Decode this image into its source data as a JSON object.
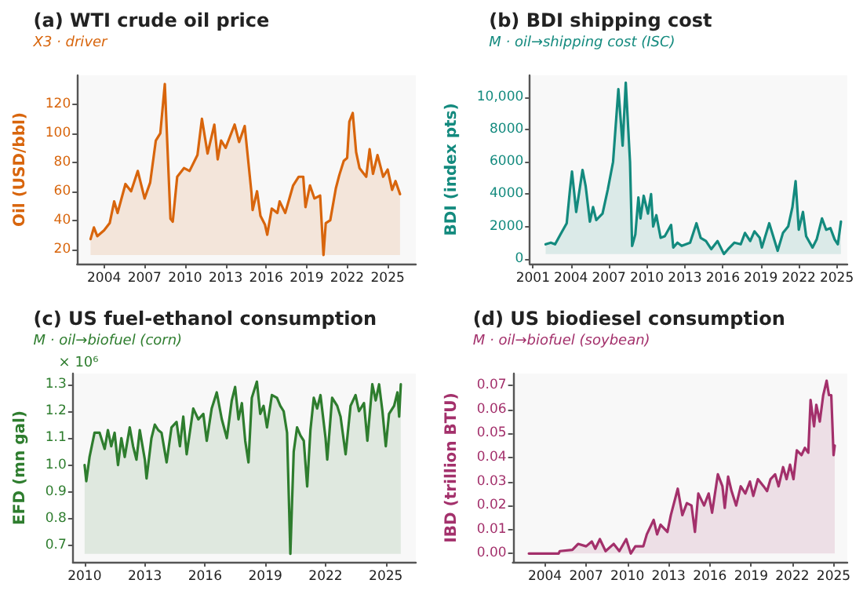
{
  "chart_data": [
    {
      "type": "area",
      "title": "(a) WTI crude oil price",
      "subtitle": "X3 · driver",
      "ylabel": "Oil (USD/bbl)",
      "color": "#d8650c",
      "x": [
        "2003-01",
        "2003-04",
        "2003-07",
        "2004-01",
        "2004-06",
        "2004-10",
        "2005-01",
        "2005-08",
        "2006-01",
        "2006-07",
        "2007-01",
        "2007-06",
        "2007-11",
        "2008-03",
        "2008-07",
        "2008-12",
        "2009-02",
        "2009-06",
        "2009-12",
        "2010-05",
        "2010-12",
        "2011-04",
        "2011-09",
        "2012-03",
        "2012-06",
        "2012-09",
        "2013-01",
        "2013-09",
        "2014-01",
        "2014-06",
        "2014-12",
        "2015-01",
        "2015-05",
        "2015-08",
        "2015-12",
        "2016-02",
        "2016-06",
        "2016-11",
        "2017-01",
        "2017-06",
        "2018-01",
        "2018-06",
        "2018-10",
        "2018-12",
        "2019-04",
        "2019-08",
        "2020-01",
        "2020-04",
        "2020-06",
        "2020-10",
        "2021-03",
        "2021-06",
        "2021-10",
        "2022-01",
        "2022-03",
        "2022-06",
        "2022-09",
        "2022-12",
        "2023-03",
        "2023-06",
        "2023-09",
        "2023-12",
        "2024-04",
        "2024-09",
        "2025-01",
        "2025-05",
        "2025-08",
        "2025-12"
      ],
      "values": [
        27,
        35,
        29,
        33,
        38,
        53,
        45,
        65,
        60,
        74,
        55,
        66,
        95,
        100,
        134,
        41,
        39,
        70,
        76,
        74,
        85,
        110,
        86,
        106,
        82,
        95,
        90,
        106,
        94,
        105,
        59,
        47,
        60,
        43,
        37,
        30,
        48,
        45,
        53,
        45,
        64,
        70,
        70,
        49,
        64,
        55,
        57,
        16,
        38,
        40,
        62,
        71,
        81,
        83,
        108,
        114,
        87,
        76,
        73,
        70,
        89,
        72,
        85,
        70,
        75,
        61,
        67,
        58
      ],
      "xlim": [
        "2002-01",
        "2027-02"
      ],
      "xticks": [
        "2004",
        "2007",
        "2010",
        "2013",
        "2016",
        "2019",
        "2022",
        "2025"
      ],
      "ylim": [
        10,
        140
      ],
      "yticks": [
        20,
        40,
        60,
        80,
        100,
        120
      ]
    },
    {
      "type": "area",
      "title": "(b) BDI shipping cost",
      "subtitle": "M · oil→shipping cost (ISC)",
      "ylabel": "BDI (index pts)",
      "color": "#138a7e",
      "x": [
        "2002-01",
        "2002-06",
        "2002-10",
        "2003-03",
        "2003-09",
        "2003-12",
        "2004-02",
        "2004-06",
        "2004-09",
        "2004-12",
        "2005-03",
        "2005-07",
        "2005-10",
        "2006-01",
        "2006-07",
        "2006-12",
        "2007-05",
        "2007-10",
        "2008-02",
        "2008-05",
        "2008-09",
        "2008-11",
        "2009-02",
        "2009-05",
        "2009-07",
        "2009-10",
        "2010-02",
        "2010-05",
        "2010-07",
        "2010-10",
        "2011-02",
        "2011-06",
        "2011-12",
        "2012-02",
        "2012-06",
        "2012-10",
        "2013-06",
        "2013-12",
        "2014-04",
        "2014-09",
        "2015-02",
        "2015-08",
        "2016-02",
        "2016-06",
        "2016-12",
        "2017-06",
        "2017-10",
        "2018-03",
        "2018-07",
        "2018-12",
        "2019-02",
        "2019-09",
        "2020-05",
        "2020-10",
        "2021-03",
        "2021-07",
        "2021-10",
        "2022-01",
        "2022-05",
        "2022-08",
        "2023-02",
        "2023-06",
        "2023-11",
        "2024-03",
        "2024-07",
        "2024-11",
        "2025-02",
        "2025-05"
      ],
      "values": [
        900,
        1000,
        900,
        1500,
        2200,
        4200,
        5400,
        2900,
        4200,
        5500,
        4500,
        2300,
        3200,
        2400,
        2800,
        4300,
        6000,
        10500,
        7000,
        10900,
        6000,
        800,
        1500,
        3800,
        2500,
        3900,
        2800,
        4000,
        2000,
        2700,
        1300,
        1400,
        2100,
        700,
        1000,
        800,
        1000,
        2200,
        1300,
        1100,
        600,
        1100,
        300,
        600,
        1000,
        900,
        1600,
        1100,
        1700,
        1300,
        700,
        2200,
        500,
        1600,
        2000,
        3200,
        4800,
        1800,
        2900,
        1400,
        700,
        1200,
        2500,
        1800,
        1900,
        1200,
        900,
        2300
      ],
      "xlim": [
        "2000-10",
        "2025-11"
      ],
      "xticks": [
        "2001",
        "2004",
        "2007",
        "2010",
        "2013",
        "2016",
        "2019",
        "2022",
        "2025"
      ],
      "ylim": [
        -300,
        11350
      ],
      "yticks": [
        0,
        2000,
        4000,
        6000,
        8000,
        {
          "value": 10000,
          "label": "10,000"
        }
      ]
    },
    {
      "type": "area",
      "title": "(c) US fuel-ethanol consumption",
      "subtitle": "M · oil→biofuel (corn)",
      "ylabel": "EFD (mn gal)",
      "color": "#2e7d2e",
      "annotations": [
        "× 10⁶"
      ],
      "x": [
        "2010-01",
        "2010-02",
        "2010-04",
        "2010-07",
        "2010-10",
        "2011-01",
        "2011-03",
        "2011-05",
        "2011-07",
        "2011-09",
        "2011-11",
        "2012-01",
        "2012-04",
        "2012-06",
        "2012-08",
        "2012-10",
        "2013-01",
        "2013-02",
        "2013-05",
        "2013-07",
        "2013-09",
        "2013-11",
        "2014-02",
        "2014-05",
        "2014-08",
        "2014-10",
        "2014-12",
        "2015-02",
        "2015-06",
        "2015-09",
        "2015-12",
        "2016-02",
        "2016-05",
        "2016-08",
        "2016-11",
        "2017-02",
        "2017-05",
        "2017-07",
        "2017-09",
        "2017-11",
        "2018-01",
        "2018-03",
        "2018-05",
        "2018-08",
        "2018-10",
        "2018-12",
        "2019-02",
        "2019-05",
        "2019-08",
        "2019-10",
        "2019-12",
        "2020-02",
        "2020-04",
        "2020-06",
        "2020-08",
        "2020-10",
        "2020-12",
        "2021-02",
        "2021-04",
        "2021-06",
        "2021-08",
        "2021-10",
        "2022-01",
        "2022-02",
        "2022-05",
        "2022-08",
        "2022-10",
        "2023-01",
        "2023-04",
        "2023-07",
        "2023-09",
        "2023-12",
        "2024-02",
        "2024-05",
        "2024-07",
        "2024-09",
        "2024-11",
        "2025-01",
        "2025-03",
        "2025-06",
        "2025-08",
        "2025-09",
        "2025-10"
      ],
      "values": [
        1.0,
        0.94,
        1.03,
        1.12,
        1.12,
        1.06,
        1.13,
        1.07,
        1.12,
        1.0,
        1.1,
        1.03,
        1.14,
        1.07,
        1.02,
        1.13,
        1.02,
        0.95,
        1.1,
        1.15,
        1.13,
        1.12,
        1.01,
        1.14,
        1.16,
        1.07,
        1.18,
        1.04,
        1.21,
        1.17,
        1.19,
        1.09,
        1.21,
        1.27,
        1.17,
        1.1,
        1.24,
        1.29,
        1.17,
        1.23,
        1.09,
        1.01,
        1.25,
        1.31,
        1.19,
        1.22,
        1.14,
        1.26,
        1.25,
        1.22,
        1.2,
        1.12,
        0.67,
        1.05,
        1.14,
        1.11,
        1.09,
        0.92,
        1.13,
        1.25,
        1.21,
        1.26,
        1.1,
        1.02,
        1.25,
        1.22,
        1.18,
        1.04,
        1.22,
        1.26,
        1.2,
        1.23,
        1.09,
        1.3,
        1.24,
        1.3,
        1.2,
        1.07,
        1.19,
        1.22,
        1.27,
        1.18,
        1.3
      ],
      "xlim": [
        "2009-06",
        "2026-07"
      ],
      "xticks": [
        "2010",
        "2013",
        "2016",
        "2019",
        "2022",
        "2025"
      ],
      "ylim": [
        0.64,
        1.34
      ],
      "yticks": [
        0.7,
        0.8,
        0.9,
        {
          "value": 1,
          "label": "1.0"
        },
        1.1,
        1.2,
        1.3
      ]
    },
    {
      "type": "area",
      "title": "(d) US biodiesel consumption",
      "subtitle": "M · oil→biofuel (soybean)",
      "ylabel": "IBD (trillion BTU)",
      "color": "#a3306b",
      "x": [
        "2002-11",
        "2005-01",
        "2005-02",
        "2006-01",
        "2006-06",
        "2007-01",
        "2007-06",
        "2007-09",
        "2008-01",
        "2008-06",
        "2009-01",
        "2009-06",
        "2009-12",
        "2010-04",
        "2010-08",
        "2011-03",
        "2011-06",
        "2011-12",
        "2012-03",
        "2012-06",
        "2012-12",
        "2013-03",
        "2013-09",
        "2014-01",
        "2014-05",
        "2014-09",
        "2014-12",
        "2015-03",
        "2015-08",
        "2015-12",
        "2016-03",
        "2016-08",
        "2016-12",
        "2017-02",
        "2017-05",
        "2017-08",
        "2017-12",
        "2018-04",
        "2018-08",
        "2018-12",
        "2019-03",
        "2019-07",
        "2019-12",
        "2020-03",
        "2020-06",
        "2020-10",
        "2021-01",
        "2021-05",
        "2021-08",
        "2021-11",
        "2022-02",
        "2022-05",
        "2022-09",
        "2022-12",
        "2023-03",
        "2023-05",
        "2023-08",
        "2023-10",
        "2024-01",
        "2024-04",
        "2024-07",
        "2024-09",
        "2024-11",
        "2025-01",
        "2025-02"
      ],
      "values": [
        0,
        0,
        0.001,
        0.0015,
        0.004,
        0.003,
        0.005,
        0.002,
        0.006,
        0.001,
        0.004,
        0.001,
        0.006,
        0,
        0.003,
        0.003,
        0.008,
        0.014,
        0.008,
        0.012,
        0.009,
        0.016,
        0.027,
        0.016,
        0.021,
        0.02,
        0.009,
        0.025,
        0.02,
        0.025,
        0.017,
        0.033,
        0.028,
        0.019,
        0.032,
        0.026,
        0.02,
        0.028,
        0.025,
        0.03,
        0.024,
        0.031,
        0.028,
        0.026,
        0.031,
        0.033,
        0.028,
        0.036,
        0.031,
        0.037,
        0.031,
        0.043,
        0.041,
        0.044,
        0.042,
        0.064,
        0.053,
        0.062,
        0.055,
        0.066,
        0.072,
        0.066,
        0.066,
        0.041,
        0.045
      ],
      "xlim": [
        "2001-09",
        "2026-01"
      ],
      "xticks": [
        "2004",
        "2007",
        "2010",
        "2013",
        "2016",
        "2019",
        "2022",
        "2025"
      ],
      "ylim": [
        -0.0035,
        0.075
      ],
      "yticks": [
        {
          "value": 0,
          "label": "0.00"
        },
        {
          "value": 0.01,
          "label": "0.01"
        },
        {
          "value": 0.02,
          "label": "0.02"
        },
        {
          "value": 0.03,
          "label": "0.03"
        },
        {
          "value": 0.04,
          "label": "0.04"
        },
        {
          "value": 0.05,
          "label": "0.05"
        },
        {
          "value": 0.06,
          "label": "0.06"
        },
        {
          "value": 0.07,
          "label": "0.07"
        }
      ]
    }
  ]
}
